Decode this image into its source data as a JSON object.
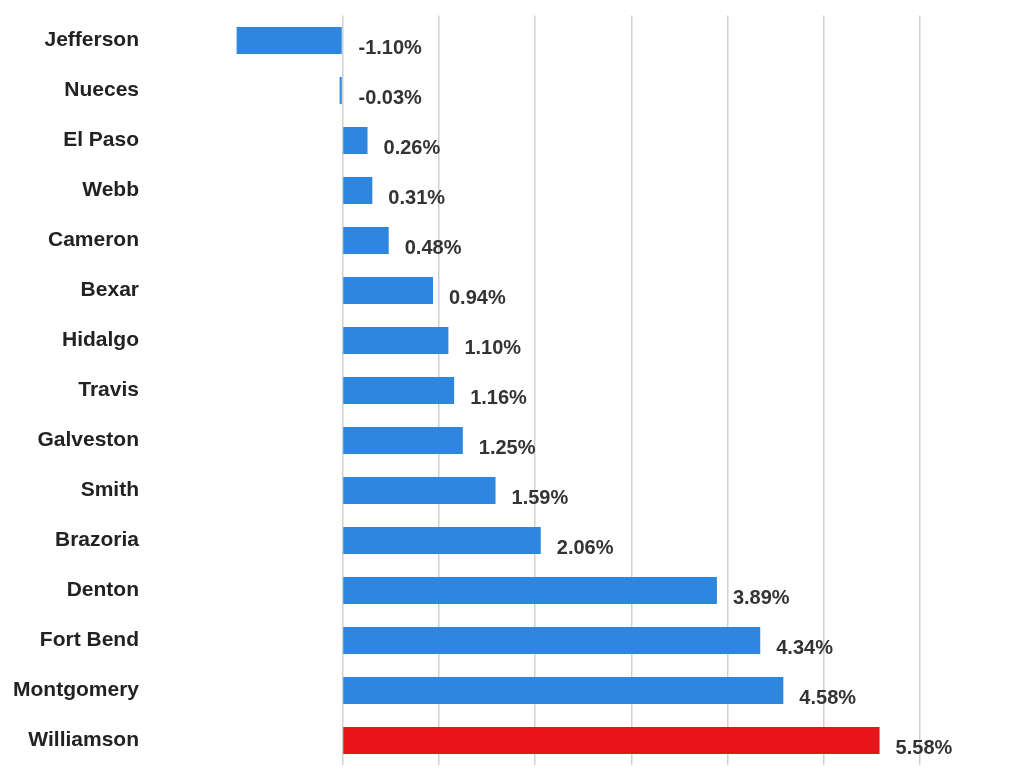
{
  "chart_data": {
    "type": "bar",
    "orientation": "horizontal",
    "categories": [
      "Jefferson",
      "Nueces",
      "El Paso",
      "Webb",
      "Cameron",
      "Bexar",
      "Hidalgo",
      "Travis",
      "Galveston",
      "Smith",
      "Brazoria",
      "Denton",
      "Fort Bend",
      "Montgomery",
      "Williamson"
    ],
    "values": [
      -1.1,
      -0.03,
      0.26,
      0.31,
      0.48,
      0.94,
      1.1,
      1.16,
      1.25,
      1.59,
      2.06,
      3.89,
      4.34,
      4.58,
      5.58
    ],
    "colors": [
      "#2e86de",
      "#2e86de",
      "#2e86de",
      "#2e86de",
      "#2e86de",
      "#2e86de",
      "#2e86de",
      "#2e86de",
      "#2e86de",
      "#2e86de",
      "#2e86de",
      "#2e86de",
      "#2e86de",
      "#2e86de",
      "#e8141a"
    ],
    "value_labels": [
      "-1.10%",
      "-0.03%",
      "0.26%",
      "0.31%",
      "0.48%",
      "0.94%",
      "1.10%",
      "1.16%",
      "1.25%",
      "1.59%",
      "2.06%",
      "3.89%",
      "4.34%",
      "4.58%",
      "5.58%"
    ],
    "xticks": [
      {
        "value": 0,
        "label": null
      },
      {
        "value": 1,
        "label": null
      },
      {
        "value": 2,
        "label": null
      },
      {
        "value": 3,
        "label": null
      },
      {
        "value": 4,
        "label": null
      },
      {
        "value": 5,
        "label": null
      },
      {
        "value": 6,
        "label": null
      }
    ],
    "grid": "x",
    "tick_labels": "y",
    "legend": false
  }
}
